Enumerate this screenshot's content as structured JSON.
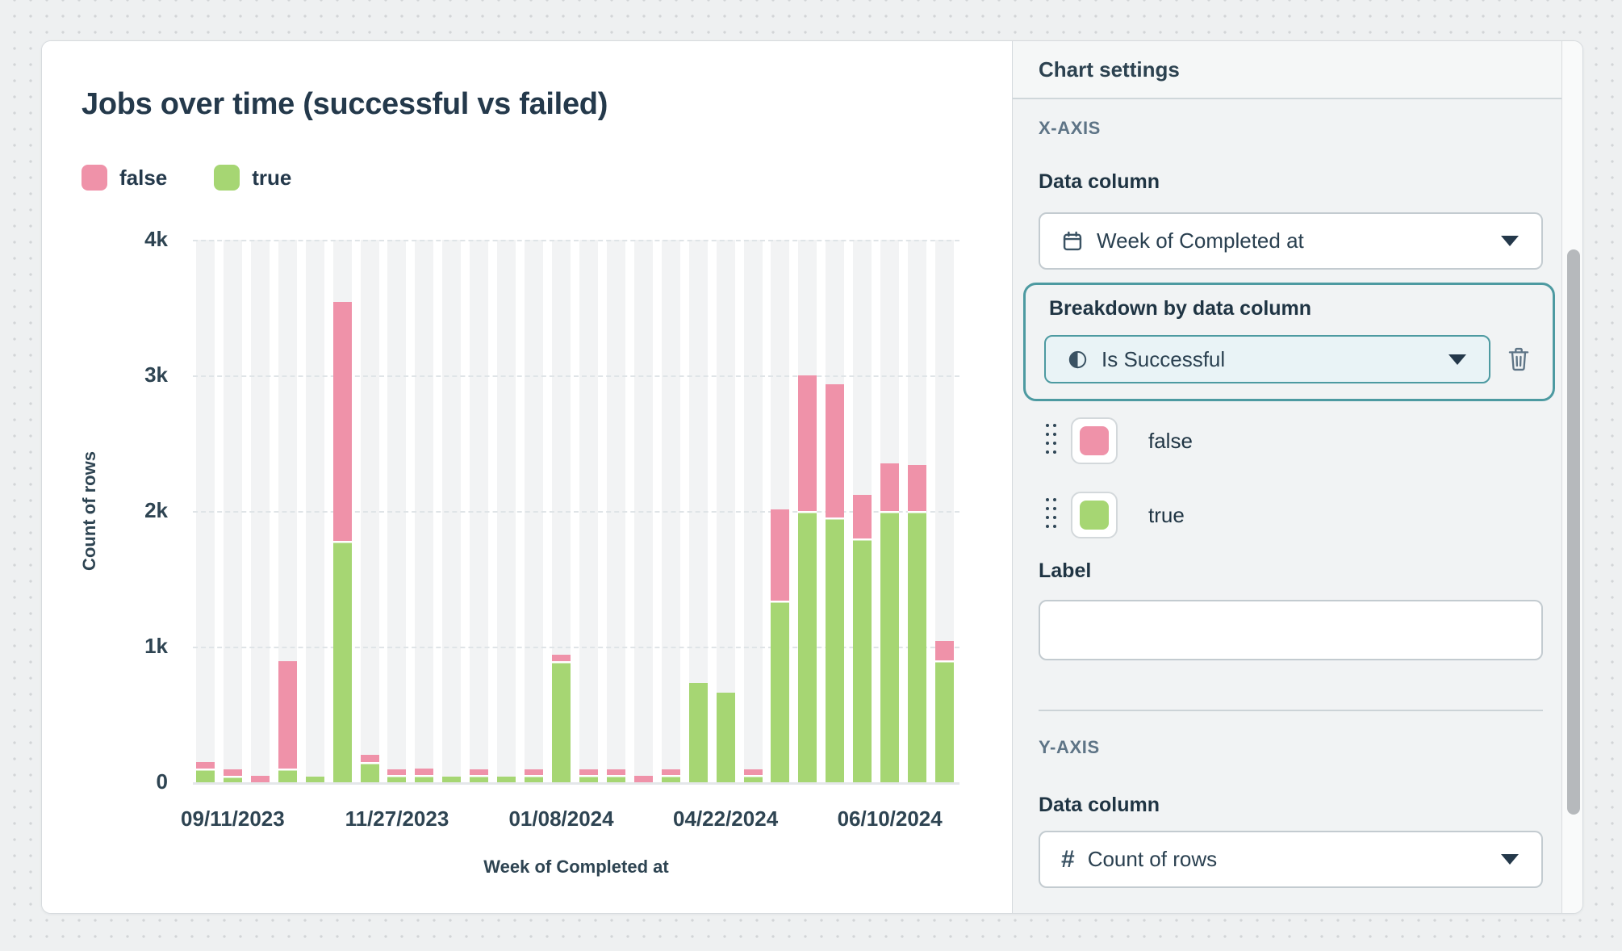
{
  "chart": {
    "title": "Jobs over time (successful vs failed)",
    "legend": [
      {
        "label": "false",
        "color": "#ef92a9"
      },
      {
        "label": "true",
        "color": "#a6d673"
      }
    ]
  },
  "chart_data": {
    "type": "bar",
    "stacked": true,
    "title": "Jobs over time (successful vs failed)",
    "xlabel": "Week of Completed at",
    "ylabel": "Count of rows",
    "ylim": [
      0,
      4000
    ],
    "y_ticks": [
      0,
      1000,
      2000,
      3000,
      4000
    ],
    "y_tick_labels": [
      "0",
      "1k",
      "2k",
      "3k",
      "4k"
    ],
    "grid": "horizontal-dashed",
    "legend_position": "top-left",
    "n_bands": 28,
    "x_tick_labels": [
      "09/11/2023",
      "11/27/2023",
      "01/08/2024",
      "04/22/2024",
      "06/10/2024"
    ],
    "x_tick_band_indices": [
      1,
      7,
      13,
      19,
      25
    ],
    "series": [
      {
        "name": "true",
        "color": "#a6d673",
        "stack_order": "bottom",
        "values": [
          100,
          45,
          0,
          100,
          40,
          1780,
          150,
          52,
          52,
          44,
          52,
          44,
          55,
          890,
          55,
          55,
          0,
          55,
          735,
          660,
          55,
          1340,
          2000,
          1950,
          1800,
          2000,
          2000,
          900
        ]
      },
      {
        "name": "false",
        "color": "#ef92a9",
        "stack_order": "top",
        "values": [
          45,
          50,
          45,
          790,
          0,
          1760,
          55,
          43,
          45,
          0,
          43,
          0,
          43,
          45,
          43,
          43,
          49,
          43,
          0,
          0,
          43,
          670,
          1000,
          980,
          320,
          350,
          340,
          140
        ]
      }
    ]
  },
  "settings": {
    "header": "Chart settings",
    "x_axis_section": "X-AXIS",
    "x_data_column_label": "Data column",
    "x_data_column_value": "Week of Completed at",
    "breakdown_label": "Breakdown by data column",
    "breakdown_value": "Is Successful",
    "series_rows": [
      {
        "label": "false",
        "color": "#ef92a9"
      },
      {
        "label": "true",
        "color": "#a6d673"
      }
    ],
    "label_field_label": "Label",
    "label_field_value": "",
    "y_axis_section": "Y-AXIS",
    "y_data_column_label": "Data column",
    "y_data_column_value": "Count of rows",
    "accent_teal": "#4d9aa1"
  }
}
